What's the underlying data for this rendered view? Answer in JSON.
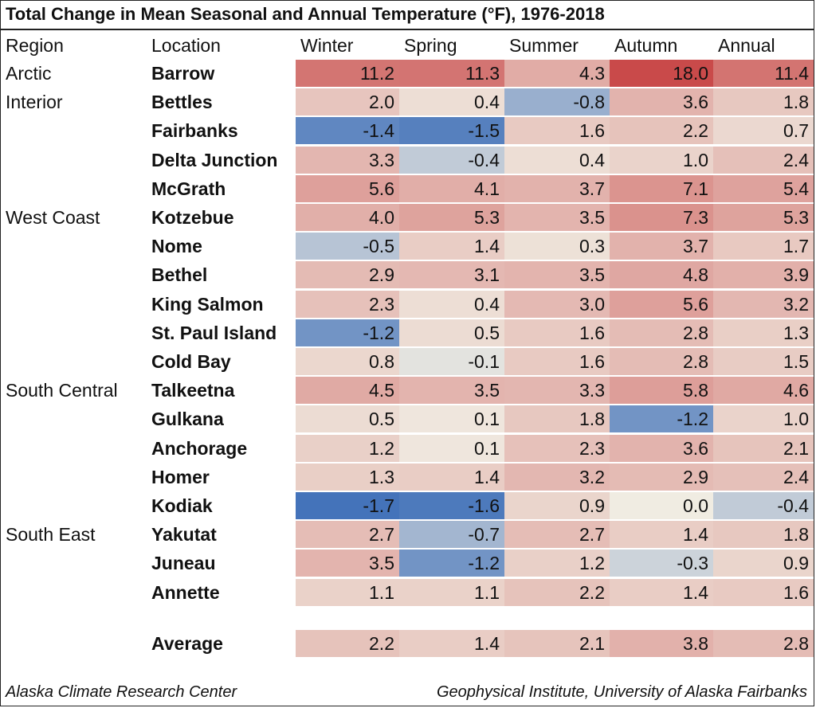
{
  "chart_data": {
    "type": "table",
    "title": "Total Change in Mean Seasonal and Annual Temperature (°F), 1976-2018",
    "columns": [
      "Region",
      "Location",
      "Winter",
      "Spring",
      "Summer",
      "Autumn",
      "Annual"
    ],
    "rows": [
      {
        "region": "Arctic",
        "location": "Barrow",
        "values": [
          11.2,
          11.3,
          4.3,
          18.0,
          11.4
        ]
      },
      {
        "region": "Interior",
        "location": "Bettles",
        "values": [
          2.0,
          0.4,
          -0.8,
          3.6,
          1.8
        ]
      },
      {
        "region": "",
        "location": "Fairbanks",
        "values": [
          -1.4,
          -1.5,
          1.6,
          2.2,
          0.7
        ]
      },
      {
        "region": "",
        "location": "Delta Junction",
        "values": [
          3.3,
          -0.4,
          0.4,
          1.0,
          2.4
        ]
      },
      {
        "region": "",
        "location": "McGrath",
        "values": [
          5.6,
          4.1,
          3.7,
          7.1,
          5.4
        ]
      },
      {
        "region": "West Coast",
        "location": "Kotzebue",
        "values": [
          4.0,
          5.3,
          3.5,
          7.3,
          5.3
        ]
      },
      {
        "region": "",
        "location": "Nome",
        "values": [
          -0.5,
          1.4,
          0.3,
          3.7,
          1.7
        ]
      },
      {
        "region": "",
        "location": "Bethel",
        "values": [
          2.9,
          3.1,
          3.5,
          4.8,
          3.9
        ]
      },
      {
        "region": "",
        "location": "King Salmon",
        "values": [
          2.3,
          0.4,
          3.0,
          5.6,
          3.2
        ]
      },
      {
        "region": "",
        "location": "St. Paul Island",
        "values": [
          -1.2,
          0.5,
          1.6,
          2.8,
          1.3
        ]
      },
      {
        "region": "",
        "location": "Cold Bay",
        "values": [
          0.8,
          -0.1,
          1.6,
          2.8,
          1.5
        ]
      },
      {
        "region": "South Central",
        "location": "Talkeetna",
        "values": [
          4.5,
          3.5,
          3.3,
          5.8,
          4.6
        ]
      },
      {
        "region": "",
        "location": "Gulkana",
        "values": [
          0.5,
          0.1,
          1.8,
          -1.2,
          1.0
        ]
      },
      {
        "region": "",
        "location": "Anchorage",
        "values": [
          1.2,
          0.1,
          2.3,
          3.6,
          2.1
        ]
      },
      {
        "region": "",
        "location": "Homer",
        "values": [
          1.3,
          1.4,
          3.2,
          2.9,
          2.4
        ]
      },
      {
        "region": "",
        "location": "Kodiak",
        "values": [
          -1.7,
          -1.6,
          0.9,
          0.0,
          -0.4
        ]
      },
      {
        "region": "South East",
        "location": "Yakutat",
        "values": [
          2.7,
          -0.7,
          2.7,
          1.4,
          1.8
        ]
      },
      {
        "region": "",
        "location": "Juneau",
        "values": [
          3.5,
          -1.2,
          1.2,
          -0.3,
          0.9
        ]
      },
      {
        "region": "",
        "location": "Annette",
        "values": [
          1.1,
          1.1,
          2.2,
          1.4,
          1.6
        ]
      }
    ],
    "average": {
      "location": "Average",
      "values": [
        2.2,
        1.4,
        2.1,
        3.8,
        2.8
      ]
    },
    "colors": {
      "positive_max": "#c94a4a",
      "neutral": "#f0ece2",
      "negative_max": "#3b6db8"
    },
    "grid": false
  },
  "footer": {
    "left": "Alaska Climate Research Center",
    "right": "Geophysical Institute, University of Alaska Fairbanks"
  }
}
